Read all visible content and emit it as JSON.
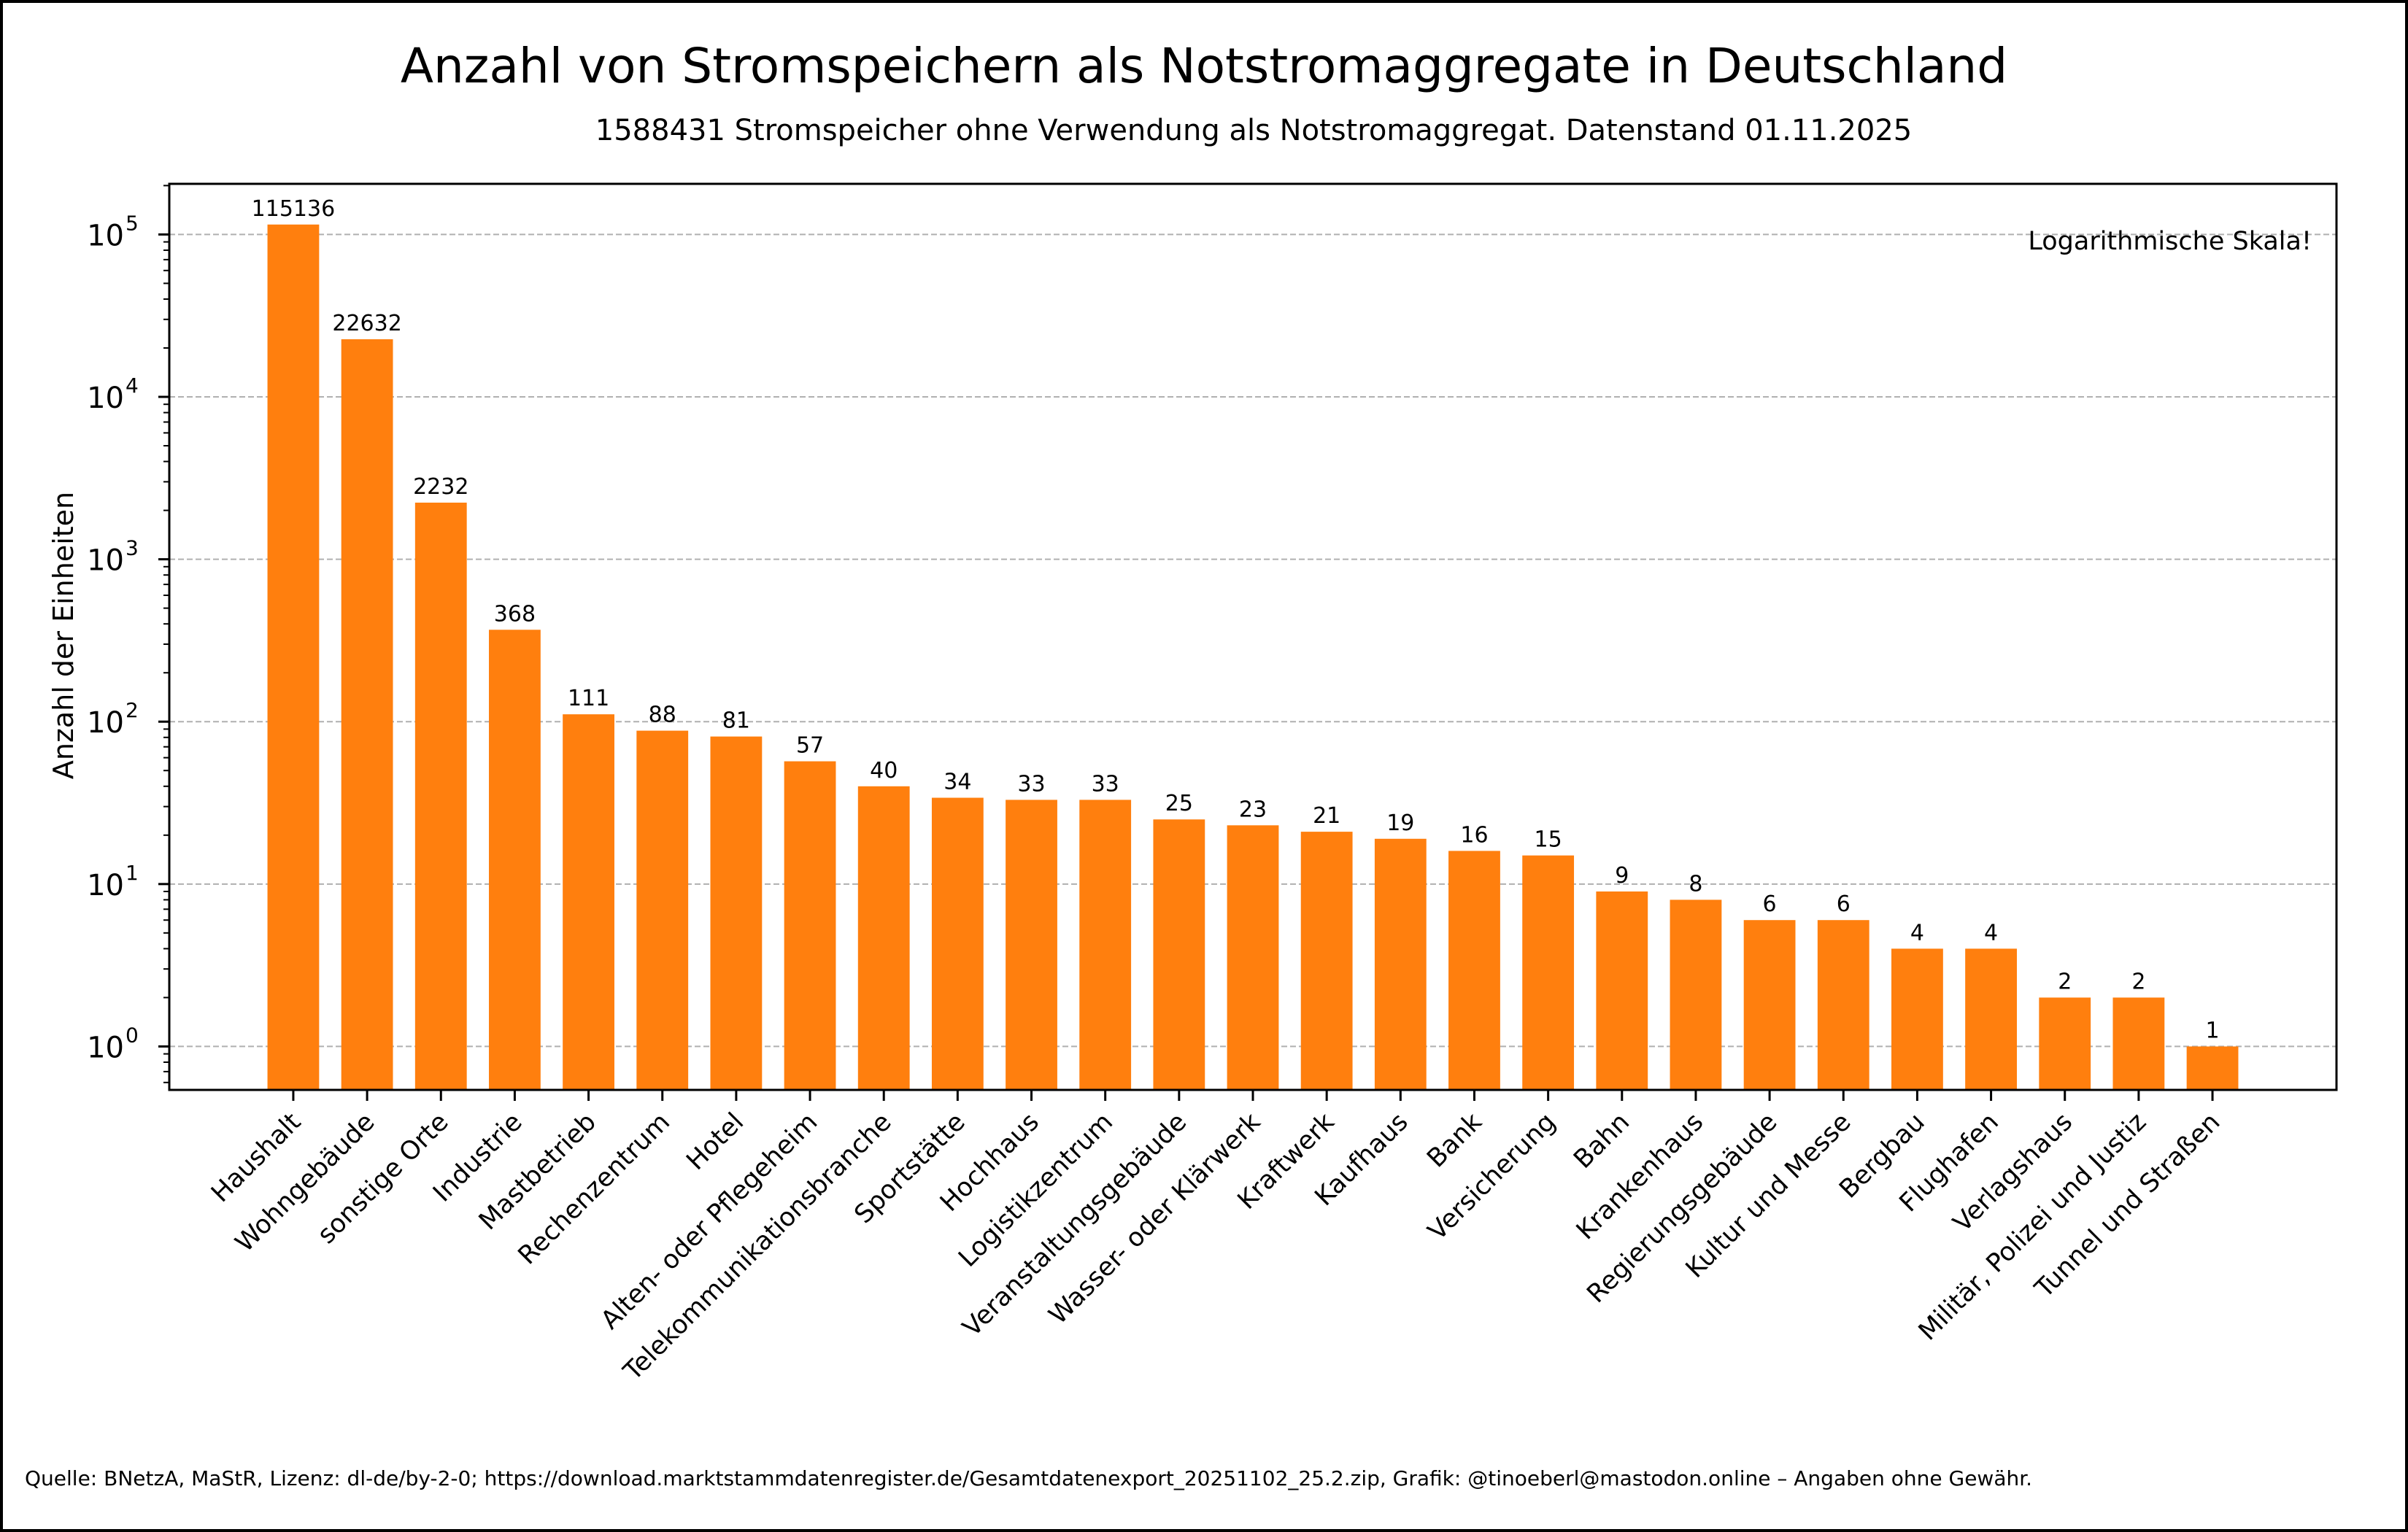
{
  "chart_data": {
    "type": "bar",
    "title": "Anzahl von Stromspeichern als Notstromaggregate in Deutschland",
    "subtitle": "1588431 Stromspeicher ohne Verwendung als Notstromaggregat. Datenstand 01.11.2025",
    "xlabel": "",
    "ylabel": "Anzahl der Einheiten",
    "yscale": "log",
    "ylim": [
      0.54,
      205000
    ],
    "yticks": [
      1,
      10,
      100,
      1000,
      10000,
      100000
    ],
    "ytick_labels": [
      {
        "base": "10",
        "exp": "0"
      },
      {
        "base": "10",
        "exp": "1"
      },
      {
        "base": "10",
        "exp": "2"
      },
      {
        "base": "10",
        "exp": "3"
      },
      {
        "base": "10",
        "exp": "4"
      },
      {
        "base": "10",
        "exp": "5"
      }
    ],
    "grid": "y, dashed",
    "annotation": "Logarithmische Skala!",
    "bar_color": "#ff7f0e",
    "categories": [
      "Haushalt",
      "Wohngebäude",
      "sonstige Orte",
      "Industrie",
      "Mastbetrieb",
      "Rechenzentrum",
      "Hotel",
      "Alten- oder Pflegeheim",
      "Telekommunikationsbranche",
      "Sportstätte",
      "Hochhaus",
      "Logistikzentrum",
      "Veranstaltungsgebäude",
      "Wasser- oder Klärwerk",
      "Kraftwerk",
      "Kaufhaus",
      "Bank",
      "Versicherung",
      "Bahn",
      "Krankenhaus",
      "Regierungsgebäude",
      "Kultur und Messe",
      "Bergbau",
      "Flughafen",
      "Verlagshaus",
      "Militär, Polizei und Justiz",
      "Tunnel und Straßen"
    ],
    "values": [
      115136,
      22632,
      2232,
      368,
      111,
      88,
      81,
      57,
      40,
      34,
      33,
      33,
      25,
      23,
      21,
      19,
      16,
      15,
      9,
      8,
      6,
      6,
      4,
      4,
      2,
      2,
      1
    ]
  },
  "footer": "Quelle: BNetzA, MaStR, Lizenz: dl-de/by-2-0; https://download.marktstammdatenregister.de/Gesamtdatenexport_20251102_25.2.zip, Grafik: @tinoeberl@mastodon.online – Angaben ohne Gewähr."
}
